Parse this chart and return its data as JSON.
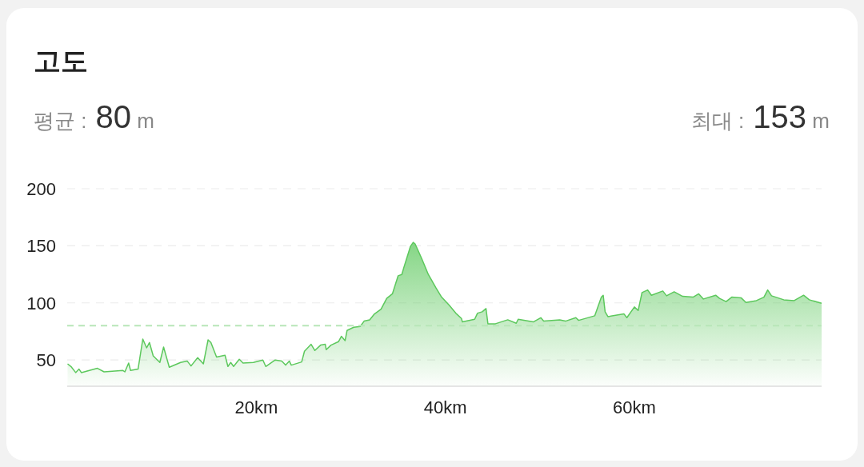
{
  "chart_data": {
    "type": "area",
    "title": "고도",
    "annotations": [
      "평균 : 80 m",
      "최대 : 153 m"
    ],
    "xlim": [
      0,
      79.8
    ],
    "ylim": [
      27,
      200
    ],
    "xticks": [
      {
        "value": 20,
        "label": "20km"
      },
      {
        "value": 40,
        "label": "40km"
      },
      {
        "value": 60,
        "label": "60km"
      }
    ],
    "yticks": [
      50,
      100,
      150,
      200
    ],
    "grid": "y",
    "tick_labels": true,
    "ref_lines": [
      {
        "axis": "y",
        "value": 80,
        "color": "#b8e6b8",
        "line_style": "dashed"
      }
    ],
    "series": [
      {
        "color": "#5cc85c",
        "x": [
          0.04,
          0.4,
          0.9,
          1.25,
          1.5,
          3.2,
          3.9,
          5.9,
          6.1,
          6.5,
          6.7,
          7.5,
          8.0,
          8.4,
          8.7,
          9.1,
          9.8,
          10.2,
          10.8,
          12.0,
          12.7,
          13.1,
          13.8,
          14.4,
          14.9,
          15.2,
          15.8,
          16.7,
          17.0,
          17.3,
          17.6,
          18.2,
          18.6,
          19.7,
          20.7,
          21.0,
          22.0,
          22.7,
          23.1,
          23.5,
          23.7,
          24.8,
          25.1,
          25.8,
          26.2,
          26.8,
          27.3,
          27.4,
          27.9,
          28.7,
          29.0,
          29.4,
          29.6,
          30.3,
          31.0,
          31.4,
          32.0,
          32.5,
          33.2,
          33.8,
          34.4,
          35.0,
          35.4,
          35.6,
          36.3,
          36.6,
          36.8,
          37.5,
          38.2,
          39.0,
          39.6,
          40.4,
          41.1,
          41.7,
          41.8,
          43.1,
          43.4,
          43.9,
          44.3,
          44.5,
          45.3,
          46.6,
          47.5,
          47.7,
          49.3,
          50.1,
          50.4,
          52.1,
          52.7,
          53.8,
          54.1,
          55.8,
          56.5,
          56.7,
          56.9,
          57.2,
          58.9,
          59.2,
          60.0,
          60.4,
          60.8,
          61.4,
          61.8,
          63.0,
          63.4,
          64.2,
          65.1,
          66.2,
          66.8,
          67.3,
          68.6,
          69.0,
          69.7,
          70.3,
          71.3,
          71.8,
          72.9,
          73.7,
          74.1,
          74.5,
          75.8,
          76.9,
          77.9,
          78.5,
          79.8
        ],
        "values": [
          46.6,
          44.3,
          39,
          42,
          39,
          42.7,
          39.6,
          40.8,
          39.6,
          47.3,
          40.8,
          42,
          68.3,
          60.6,
          65.3,
          53.6,
          47.8,
          61.3,
          43.6,
          47.8,
          49,
          44.8,
          52,
          46.6,
          67.6,
          65.3,
          52.5,
          54.1,
          44.3,
          47.8,
          44.3,
          50.6,
          47.3,
          47.8,
          50,
          44.3,
          50,
          49,
          45.5,
          49,
          45.5,
          48.3,
          57.6,
          63.7,
          58.3,
          63,
          63.7,
          59,
          63,
          66,
          70.7,
          67,
          75.8,
          78.6,
          79.3,
          84,
          85.2,
          90.3,
          94.5,
          103.9,
          108,
          123.7,
          124.9,
          130.7,
          149.4,
          153,
          151.7,
          138.9,
          124.9,
          113.2,
          105,
          98,
          91,
          86.3,
          83.3,
          85.6,
          91,
          92.2,
          95,
          81.7,
          81.7,
          85.2,
          82.1,
          85.6,
          83.3,
          87,
          84,
          85.2,
          84,
          87,
          84.7,
          88.7,
          105,
          106.7,
          92.2,
          88,
          90.3,
          87,
          96.4,
          93.3,
          109,
          111.3,
          106.7,
          110.4,
          106.2,
          109.7,
          105.7,
          105,
          108,
          103.4,
          106.7,
          103.9,
          101.1,
          105,
          104.3,
          100.4,
          102,
          105,
          111.3,
          106.2,
          102.7,
          102,
          106.7,
          102.7,
          99.7
        ]
      }
    ]
  }
}
